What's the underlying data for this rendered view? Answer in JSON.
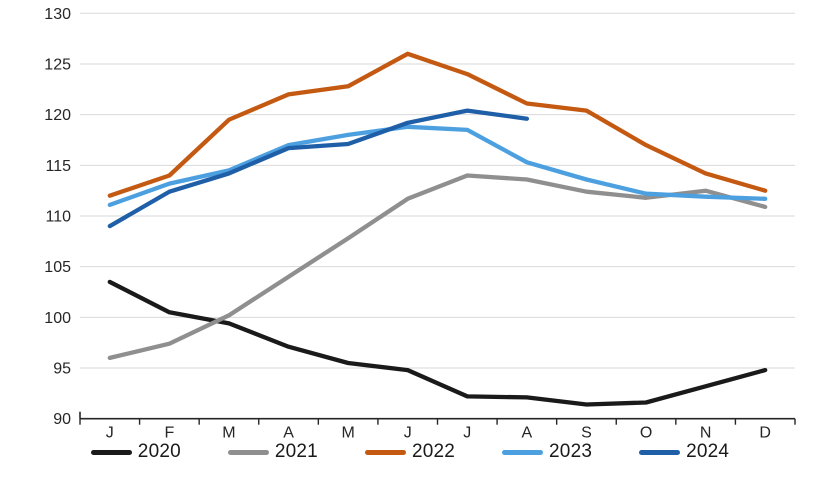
{
  "chart_data": {
    "type": "line",
    "title": "",
    "xlabel": "",
    "ylabel": "",
    "x_categories": [
      "J",
      "F",
      "M",
      "A",
      "M",
      "J",
      "J",
      "A",
      "S",
      "O",
      "N",
      "D"
    ],
    "y_ticks": [
      90,
      95,
      100,
      105,
      110,
      115,
      120,
      125,
      130
    ],
    "ylim": [
      90,
      130
    ],
    "grid": "horizontal-only",
    "gridline_color": "#d9d9d9",
    "axis_color": "#262626",
    "legend_position": "bottom",
    "series": [
      {
        "name": "2020",
        "color": "#1a1a1a",
        "values": [
          103.5,
          100.5,
          99.4,
          97.1,
          95.5,
          94.8,
          92.2,
          92.1,
          91.4,
          91.6,
          93.2,
          94.8
        ]
      },
      {
        "name": "2021",
        "color": "#8f8f8f",
        "values": [
          96.0,
          97.4,
          100.2,
          104.0,
          107.8,
          111.7,
          114.0,
          113.6,
          112.4,
          111.8,
          112.5,
          110.9
        ]
      },
      {
        "name": "2022",
        "color": "#c45911",
        "values": [
          112.0,
          114.0,
          119.5,
          122.0,
          122.8,
          126.0,
          124.0,
          121.1,
          120.4,
          117.0,
          114.2,
          112.5
        ]
      },
      {
        "name": "2023",
        "color": "#4da0e0",
        "values": [
          111.1,
          113.2,
          114.5,
          117.0,
          118.0,
          118.8,
          118.5,
          115.3,
          113.6,
          112.2,
          111.9,
          111.7
        ]
      },
      {
        "name": "2024",
        "color": "#1f5fa8",
        "values": [
          109.0,
          112.4,
          114.2,
          116.7,
          117.1,
          119.2,
          120.4,
          119.6,
          null,
          null,
          null,
          null
        ]
      }
    ]
  }
}
